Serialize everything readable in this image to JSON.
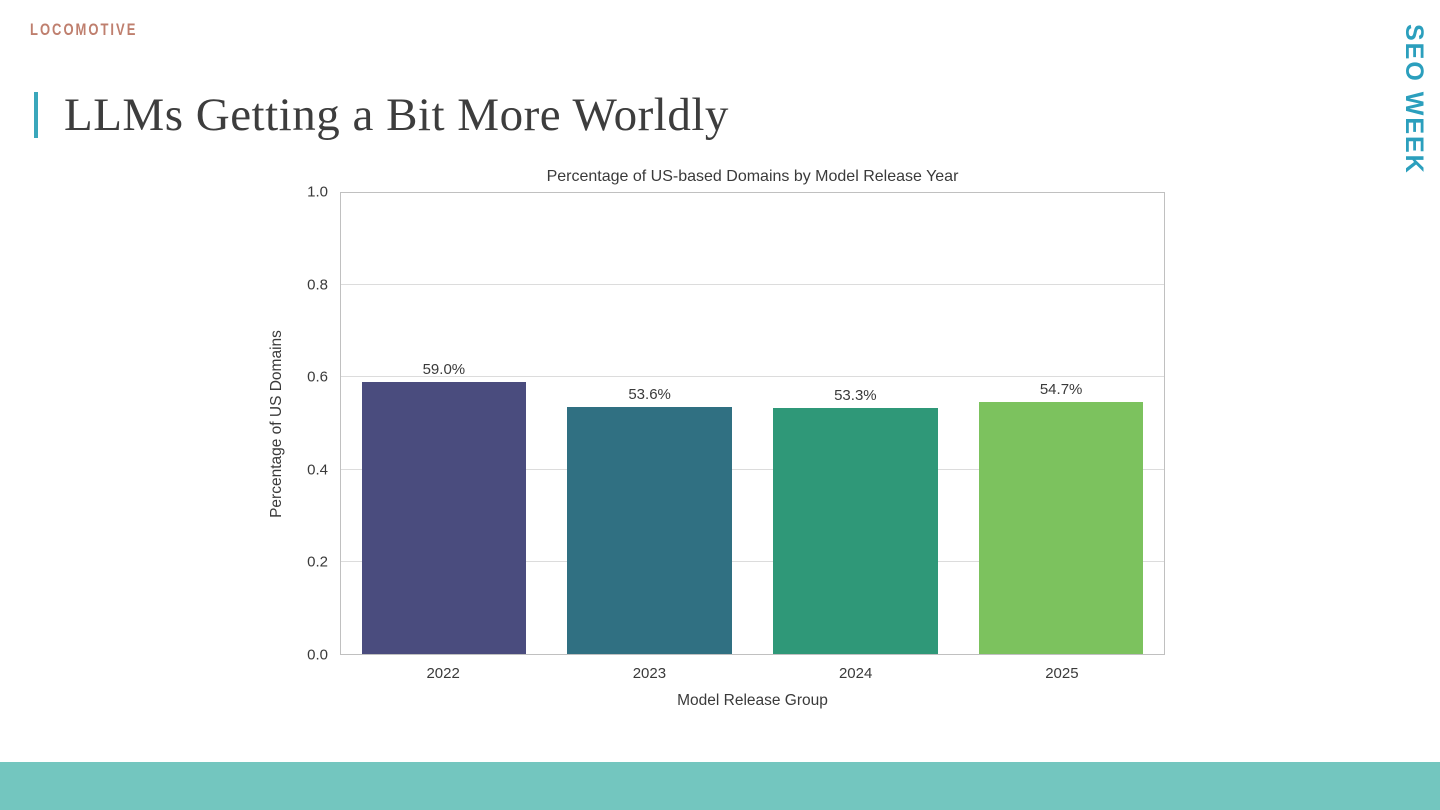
{
  "branding": {
    "logo_text": "LOCOMOTIVE",
    "side_banner": "SEO WEEK",
    "accent_teal": "#3aa7bb",
    "banner_color": "#2b9fbd",
    "logo_color": "#bf7f6e",
    "footer_color": "#73c6bf"
  },
  "slide": {
    "title": "LLMs Getting a Bit More Worldly"
  },
  "chart_data": {
    "type": "bar",
    "title": "Percentage of US-based Domains by Model Release Year",
    "xlabel": "Model Release Group",
    "ylabel": "Percentage of US Domains",
    "categories": [
      "2022",
      "2023",
      "2024",
      "2025"
    ],
    "values": [
      0.59,
      0.536,
      0.533,
      0.547
    ],
    "value_labels": [
      "59.0%",
      "53.6%",
      "53.3%",
      "54.7%"
    ],
    "bar_colors": [
      "#4a4c7e",
      "#307082",
      "#2f9878",
      "#7cc25e"
    ],
    "ylim": [
      0.0,
      1.0
    ],
    "yticks": [
      0.0,
      0.2,
      0.4,
      0.6,
      0.8,
      1.0
    ],
    "grid": true,
    "legend": "none"
  }
}
